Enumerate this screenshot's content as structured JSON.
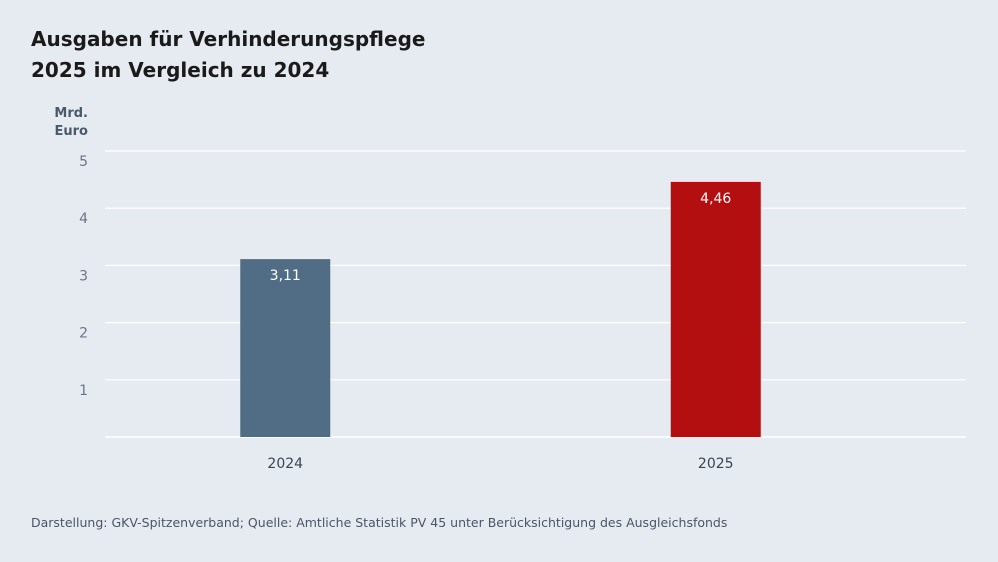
{
  "title_lines": [
    "Ausgaben für Verhinderungspflege",
    "2025 im Vergleich zu 2024"
  ],
  "source": "Darstellung: GKV-Spitzenverband; Quelle: Amtliche Statistik PV 45 unter Berücksichtigung des Ausgleichsfonds",
  "colors": {
    "background": "#e6ebf2",
    "bar_2024": "#506d85",
    "bar_2025": "#b30f10",
    "grid": "#ffffff"
  },
  "chart_data": {
    "type": "bar",
    "title": "Ausgaben für Verhinderungspflege 2025 im Vergleich zu 2024",
    "ylabel_lines": [
      "Mrd.",
      "Euro"
    ],
    "xlabel": "",
    "categories": [
      "2024",
      "2025"
    ],
    "values": [
      3.11,
      4.46
    ],
    "value_labels": [
      "3,11",
      "4,46"
    ],
    "bar_colors": [
      "#506d85",
      "#b30f10"
    ],
    "ylim": [
      0,
      5
    ],
    "yticks": [
      1,
      2,
      3,
      4,
      5
    ],
    "grid": true,
    "legend": "none"
  }
}
